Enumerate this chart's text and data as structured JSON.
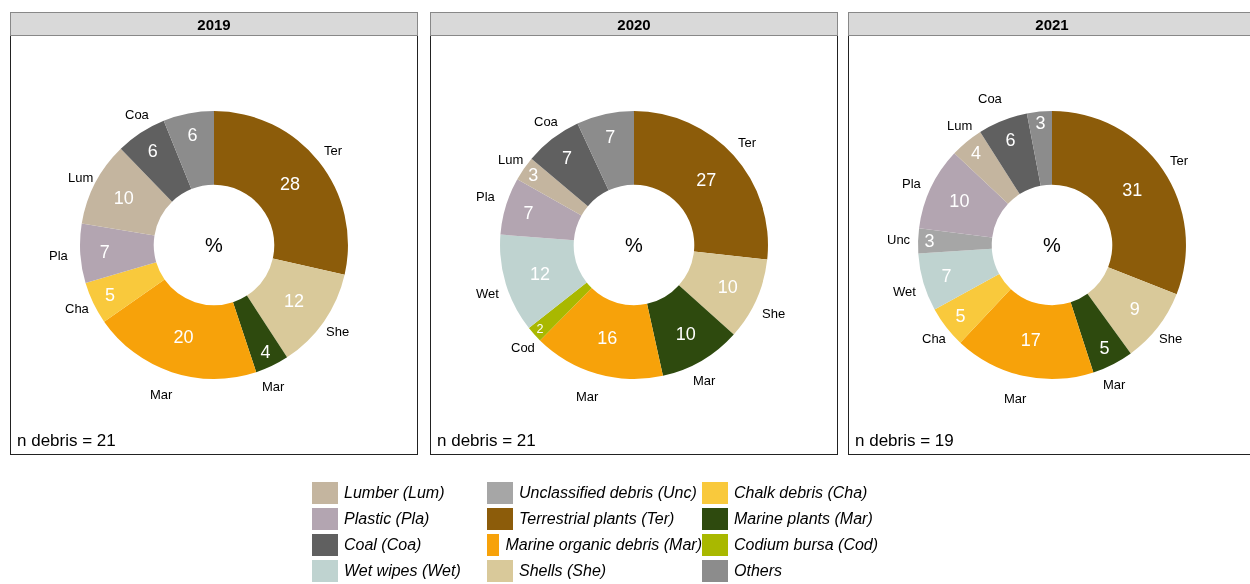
{
  "chart_data": [
    {
      "type": "donut",
      "title": "2019",
      "categories": [
        "Ter",
        "She",
        "Mar",
        "Mar",
        "Cha",
        "Pla",
        "Lum",
        "Coa",
        null
      ],
      "values": [
        28,
        12,
        4,
        20,
        5,
        7,
        10,
        6,
        6
      ],
      "colors": [
        "#8c5c0a",
        "#d9c99a",
        "#2e4a0e",
        "#f7a20a",
        "#f9c93c",
        "#b3a5b1",
        "#c4b59f",
        "#606060",
        "#8c8c8c"
      ],
      "data_labels": true,
      "annotations": [
        "%",
        "n debris = 21"
      ]
    },
    {
      "type": "donut",
      "title": "2020",
      "categories": [
        "Ter",
        "She",
        "Mar",
        "Mar",
        "Cod",
        "Wet",
        "Pla",
        "Lum",
        "Coa",
        null
      ],
      "values": [
        27,
        10,
        10,
        16,
        2,
        12,
        7,
        3,
        7,
        7
      ],
      "colors": [
        "#8c5c0a",
        "#d9c99a",
        "#2e4a0e",
        "#f7a20a",
        "#a9b800",
        "#bfd3d0",
        "#b3a5b1",
        "#c4b59f",
        "#606060",
        "#8c8c8c"
      ],
      "data_labels": true,
      "annotations": [
        "%",
        "n debris = 21"
      ]
    },
    {
      "type": "donut",
      "title": "2021",
      "categories": [
        "Ter",
        "She",
        "Mar",
        "Mar",
        "Cha",
        "Wet",
        "Unc",
        "Pla",
        "Lum",
        "Coa",
        null
      ],
      "values": [
        31,
        9,
        5,
        17,
        5,
        7,
        3,
        10,
        4,
        6,
        3
      ],
      "colors": [
        "#8c5c0a",
        "#d9c99a",
        "#2e4a0e",
        "#f7a20a",
        "#f9c93c",
        "#bfd3d0",
        "#a6a6a6",
        "#b3a5b1",
        "#c4b59f",
        "#606060",
        "#8c8c8c"
      ],
      "data_labels": true,
      "annotations": [
        "%",
        "n debris = 19"
      ]
    },
    {
      "type": "other",
      "categories": [
        "Lumber (Lum)",
        "Plastic (Pla)",
        "Coal (Coa)",
        "Wet wipes (Wet)",
        "Unclassified debris (Unc)",
        "Terrestrial plants (Ter)",
        "Marine organic debris (Mar)",
        "Shells (She)",
        "Chalk debris (Cha)",
        "Marine plants (Mar)",
        "Codium bursa (Cod)",
        "Others"
      ],
      "colors": [
        "#c4b59f",
        "#b3a5b1",
        "#606060",
        "#bfd3d0",
        "#a6a6a6",
        "#8c5c0a",
        "#f7a20a",
        "#d9c99a",
        "#f9c93c",
        "#2e4a0e",
        "#a9b800",
        "#8c8c8c"
      ]
    }
  ]
}
